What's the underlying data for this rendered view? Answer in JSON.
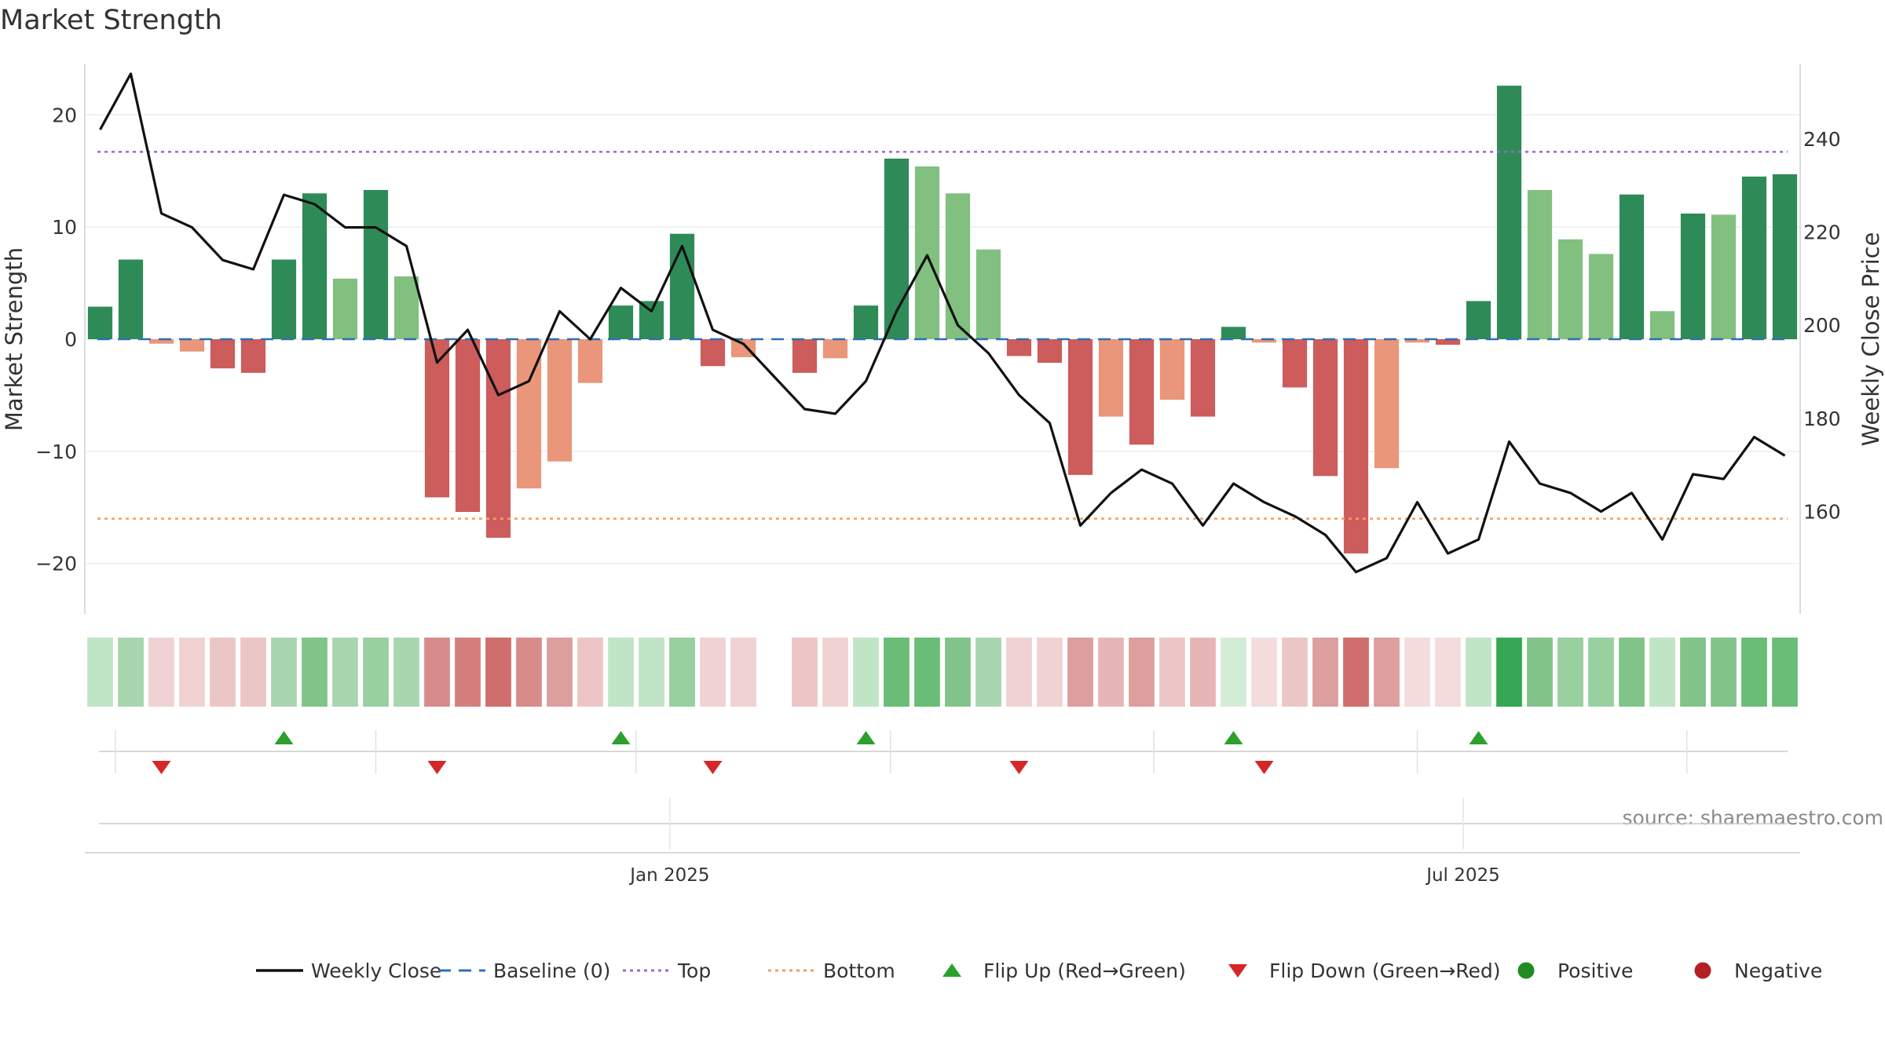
{
  "chart_data": {
    "type": "bar",
    "title": "Market Strength",
    "ylabel": "Market Strength",
    "y2label": "Weekly Close Price",
    "ylim": [
      -24.5,
      24.5
    ],
    "y2lim": [
      138,
      256
    ],
    "yticks": [
      -20,
      -10,
      0,
      10,
      20
    ],
    "y2ticks": [
      160,
      180,
      200,
      220,
      240
    ],
    "top_line": 16.7,
    "bottom_line": -16,
    "x_tick_labels": [
      {
        "label": "Jan 2025",
        "index": 18.6
      },
      {
        "label": "Jul 2025",
        "index": 44.5
      }
    ],
    "source": "source: sharemaestro.com",
    "legend": [
      {
        "label": "Weekly Close",
        "kind": "line",
        "color": "#111111"
      },
      {
        "label": "Baseline (0)",
        "kind": "dash",
        "color": "#2f6fb5"
      },
      {
        "label": "Top",
        "kind": "dot",
        "color": "#9a67d0"
      },
      {
        "label": "Bottom",
        "kind": "dot",
        "color": "#f0a060"
      },
      {
        "label": "Flip Up (Red→Green)",
        "kind": "up",
        "color": "#2ca02c"
      },
      {
        "label": "Flip Down (Green→Red)",
        "kind": "down",
        "color": "#d62728"
      },
      {
        "label": "Positive",
        "kind": "circle",
        "color": "#228b22"
      },
      {
        "label": "Negative",
        "kind": "circle",
        "color": "#b22222"
      }
    ],
    "series": [
      {
        "name": "Market Strength",
        "values": [
          2.9,
          7.1,
          -0.4,
          -1.1,
          -2.6,
          -3.0,
          7.1,
          13.0,
          5.4,
          13.3,
          5.6,
          -14.1,
          -15.4,
          -17.7,
          -13.3,
          -10.9,
          -3.9,
          3.0,
          3.4,
          9.4,
          -2.4,
          -1.6,
          0,
          -3.0,
          -1.7,
          3.0,
          16.1,
          15.4,
          13.0,
          8.0,
          -1.5,
          -2.1,
          -12.1,
          -6.9,
          -9.4,
          -5.4,
          -6.9,
          1.1,
          -0.3,
          -4.3,
          -12.2,
          -19.1,
          -11.5,
          -0.3,
          -0.5,
          3.4,
          22.6,
          13.3,
          8.9,
          7.6,
          12.9,
          2.5,
          11.2,
          11.1,
          14.5,
          14.7
        ],
        "shade": [
          2,
          2,
          1,
          1,
          2,
          2,
          2,
          2,
          1,
          2,
          1,
          2,
          2,
          2,
          1,
          1,
          1,
          2,
          2,
          2,
          2,
          1,
          1,
          2,
          1,
          2,
          2,
          1,
          1,
          1,
          2,
          2,
          2,
          1,
          2,
          1,
          2,
          2,
          1,
          2,
          2,
          2,
          1,
          1,
          2,
          2,
          2,
          1,
          1,
          1,
          2,
          1,
          2,
          1,
          2,
          2
        ]
      },
      {
        "name": "Weekly Close",
        "values": [
          242,
          254,
          224,
          221,
          214,
          212,
          228,
          226,
          221,
          221,
          217,
          192,
          199,
          185,
          188,
          203,
          197,
          208,
          203,
          217,
          199,
          196,
          189,
          182,
          181,
          188,
          203,
          215,
          200,
          194,
          185,
          179,
          157,
          164,
          169,
          166,
          157,
          166,
          162,
          159,
          155,
          147,
          150,
          162,
          151,
          154,
          175,
          166,
          164,
          160,
          164,
          154,
          168,
          167,
          176,
          172
        ]
      }
    ],
    "heat_strip": [
      "g1",
      "g2",
      "r1",
      "r1",
      "r2",
      "r2",
      "g2",
      "g4",
      "g2",
      "g3",
      "g2",
      "r5",
      "r6",
      "r7",
      "r5",
      "r4",
      "r2",
      "g1",
      "g1",
      "g3",
      "r1",
      "r1",
      null,
      "r2",
      "r1",
      "g1",
      "g5",
      "g5",
      "g4",
      "g2",
      "r1",
      "r1",
      "r4",
      "r3",
      "r4",
      "r2",
      "r3",
      "g0",
      "r0",
      "r2",
      "r4",
      "r7",
      "r4",
      "r0",
      "r0",
      "g1",
      "g6",
      "g4",
      "g3",
      "g3",
      "g4",
      "g1",
      "g4",
      "g4",
      "g5",
      "g5"
    ],
    "flips": {
      "up": [
        6,
        17,
        25,
        37,
        45
      ],
      "down": [
        2,
        11,
        20,
        30,
        38
      ]
    }
  }
}
